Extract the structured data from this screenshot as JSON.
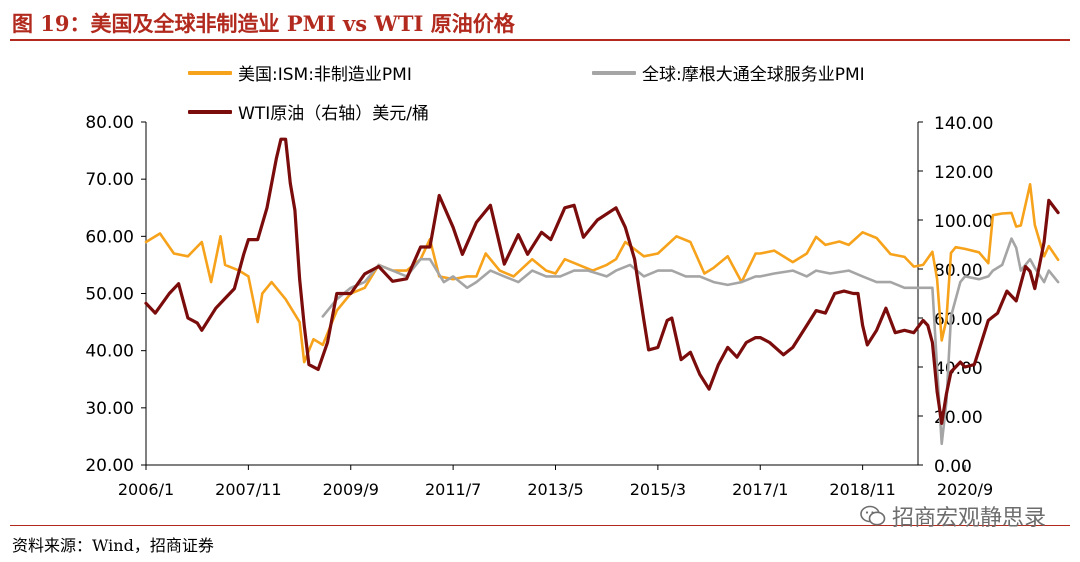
{
  "figure": {
    "title": "图 19：美国及全球非制造业 PMI vs WTI 原油价格",
    "source": "资料来源：Wind，招商证券",
    "watermark": "招商宏观静思录"
  },
  "legend": {
    "items": [
      {
        "label": "美国:ISM:非制造业PMI",
        "color": "#f7a21b"
      },
      {
        "label": "全球:摩根大通全球服务业PMI",
        "color": "#a5a5a5"
      },
      {
        "label": "WTI原油（右轴）美元/桶",
        "color": "#7b0c0c"
      }
    ]
  },
  "colors": {
    "accent": "#b22a1e",
    "us_pmi": "#f7a21b",
    "global_pmi": "#a5a5a5",
    "wti": "#7b0c0c"
  },
  "chart_data": {
    "type": "line",
    "x_labels": [
      "2006/1",
      "2007/11",
      "2009/9",
      "2011/7",
      "2013/5",
      "2015/3",
      "2017/1",
      "2018/11",
      "2020/9"
    ],
    "x_label_dates": [
      "2006-01",
      "2007-11",
      "2009-09",
      "2011-07",
      "2013-05",
      "2015-03",
      "2017-01",
      "2018-11",
      "2020-09"
    ],
    "y_left": {
      "min": 20,
      "max": 80,
      "ticks": [
        "20.00",
        "30.00",
        "40.00",
        "50.00",
        "60.00",
        "70.00",
        "80.00"
      ]
    },
    "y_right": {
      "min": 0,
      "max": 140,
      "ticks": [
        "0.00",
        "20.00",
        "40.00",
        "60.00",
        "80.00",
        "100.00",
        "120.00",
        "140.00"
      ]
    },
    "series": [
      {
        "name": "美国:ISM:非制造业PMI",
        "axis": "left",
        "color": "#f7a21b",
        "points": [
          [
            "2006-01",
            59
          ],
          [
            "2006-04",
            60.5
          ],
          [
            "2006-07",
            57
          ],
          [
            "2006-10",
            56.5
          ],
          [
            "2007-01",
            59
          ],
          [
            "2007-03",
            52
          ],
          [
            "2007-05",
            60
          ],
          [
            "2007-06",
            55
          ],
          [
            "2007-09",
            54
          ],
          [
            "2007-11",
            53
          ],
          [
            "2008-01",
            45
          ],
          [
            "2008-02",
            50
          ],
          [
            "2008-04",
            52
          ],
          [
            "2008-07",
            49
          ],
          [
            "2008-10",
            45
          ],
          [
            "2008-11",
            38
          ],
          [
            "2009-01",
            42
          ],
          [
            "2009-03",
            41
          ],
          [
            "2009-06",
            47
          ],
          [
            "2009-09",
            50
          ],
          [
            "2009-12",
            51
          ],
          [
            "2010-03",
            55
          ],
          [
            "2010-06",
            54
          ],
          [
            "2010-09",
            54
          ],
          [
            "2010-12",
            56
          ],
          [
            "2011-02",
            59.5
          ],
          [
            "2011-04",
            53
          ],
          [
            "2011-07",
            52.5
          ],
          [
            "2011-10",
            53
          ],
          [
            "2011-12",
            53
          ],
          [
            "2012-02",
            57
          ],
          [
            "2012-05",
            54
          ],
          [
            "2012-08",
            53
          ],
          [
            "2012-12",
            56
          ],
          [
            "2013-03",
            54
          ],
          [
            "2013-05",
            53.5
          ],
          [
            "2013-07",
            56
          ],
          [
            "2013-10",
            55
          ],
          [
            "2014-01",
            54
          ],
          [
            "2014-04",
            55
          ],
          [
            "2014-06",
            56
          ],
          [
            "2014-08",
            59
          ],
          [
            "2014-12",
            56.5
          ],
          [
            "2015-03",
            57
          ],
          [
            "2015-07",
            60
          ],
          [
            "2015-10",
            59
          ],
          [
            "2016-01",
            53.5
          ],
          [
            "2016-03",
            54.5
          ],
          [
            "2016-06",
            56.5
          ],
          [
            "2016-09",
            52
          ],
          [
            "2016-12",
            57
          ],
          [
            "2017-01",
            57
          ],
          [
            "2017-04",
            57.5
          ],
          [
            "2017-08",
            55.5
          ],
          [
            "2017-11",
            57
          ],
          [
            "2018-01",
            59.9
          ],
          [
            "2018-03",
            58.5
          ],
          [
            "2018-06",
            59.1
          ],
          [
            "2018-08",
            58.5
          ],
          [
            "2018-11",
            60.7
          ],
          [
            "2019-02",
            59.7
          ],
          [
            "2019-05",
            56.9
          ],
          [
            "2019-08",
            56.4
          ],
          [
            "2019-10",
            54.7
          ],
          [
            "2019-12",
            55.0
          ],
          [
            "2020-02",
            57.3
          ],
          [
            "2020-03",
            52.5
          ],
          [
            "2020-04",
            41.8
          ],
          [
            "2020-05",
            45.4
          ],
          [
            "2020-06",
            57.1
          ],
          [
            "2020-07",
            58.1
          ],
          [
            "2020-09",
            57.8
          ],
          [
            "2020-12",
            57.2
          ],
          [
            "2021-02",
            55.3
          ],
          [
            "2021-03",
            63.7
          ],
          [
            "2021-05",
            64.0
          ],
          [
            "2021-07",
            64.1
          ],
          [
            "2021-08",
            61.7
          ],
          [
            "2021-09",
            61.9
          ],
          [
            "2021-11",
            69.1
          ],
          [
            "2021-12",
            62.0
          ],
          [
            "2022-02",
            56.5
          ],
          [
            "2022-03",
            58.3
          ],
          [
            "2022-05",
            55.9
          ]
        ]
      },
      {
        "name": "全球:摩根大通全球服务业PMI",
        "axis": "left",
        "color": "#a5a5a5",
        "points": [
          [
            "2009-03",
            46
          ],
          [
            "2009-06",
            49
          ],
          [
            "2009-09",
            51
          ],
          [
            "2009-12",
            52
          ],
          [
            "2010-03",
            55
          ],
          [
            "2010-06",
            54
          ],
          [
            "2010-09",
            53
          ],
          [
            "2010-12",
            56
          ],
          [
            "2011-02",
            56
          ],
          [
            "2011-05",
            52
          ],
          [
            "2011-07",
            53
          ],
          [
            "2011-10",
            51
          ],
          [
            "2011-12",
            52
          ],
          [
            "2012-03",
            54
          ],
          [
            "2012-06",
            53
          ],
          [
            "2012-09",
            52
          ],
          [
            "2012-12",
            54
          ],
          [
            "2013-03",
            53
          ],
          [
            "2013-06",
            53
          ],
          [
            "2013-09",
            54
          ],
          [
            "2013-12",
            54
          ],
          [
            "2014-04",
            53
          ],
          [
            "2014-06",
            54
          ],
          [
            "2014-09",
            55
          ],
          [
            "2014-12",
            53
          ],
          [
            "2015-03",
            54
          ],
          [
            "2015-06",
            54
          ],
          [
            "2015-09",
            53
          ],
          [
            "2015-12",
            53
          ],
          [
            "2016-03",
            52
          ],
          [
            "2016-06",
            51.5
          ],
          [
            "2016-09",
            52
          ],
          [
            "2016-12",
            53
          ],
          [
            "2017-01",
            53
          ],
          [
            "2017-04",
            53.5
          ],
          [
            "2017-08",
            54
          ],
          [
            "2017-11",
            53
          ],
          [
            "2018-01",
            54
          ],
          [
            "2018-04",
            53.5
          ],
          [
            "2018-08",
            54
          ],
          [
            "2018-11",
            53
          ],
          [
            "2019-02",
            52
          ],
          [
            "2019-05",
            52
          ],
          [
            "2019-08",
            51
          ],
          [
            "2019-10",
            51
          ],
          [
            "2019-12",
            51
          ],
          [
            "2020-02",
            51
          ],
          [
            "2020-03",
            37
          ],
          [
            "2020-04",
            23.7
          ],
          [
            "2020-05",
            31
          ],
          [
            "2020-06",
            46
          ],
          [
            "2020-08",
            52
          ],
          [
            "2020-09",
            53
          ],
          [
            "2020-12",
            52.5
          ],
          [
            "2021-02",
            53
          ],
          [
            "2021-03",
            54
          ],
          [
            "2021-05",
            55
          ],
          [
            "2021-07",
            59.6
          ],
          [
            "2021-08",
            58
          ],
          [
            "2021-09",
            54
          ],
          [
            "2021-11",
            56
          ],
          [
            "2021-12",
            54.5
          ],
          [
            "2022-02",
            52
          ],
          [
            "2022-03",
            54
          ],
          [
            "2022-05",
            52
          ]
        ]
      },
      {
        "name": "WTI原油（右轴）美元/桶",
        "axis": "right",
        "color": "#7b0c0c",
        "points": [
          [
            "2006-01",
            66
          ],
          [
            "2006-03",
            62
          ],
          [
            "2006-06",
            70
          ],
          [
            "2006-08",
            74
          ],
          [
            "2006-10",
            60
          ],
          [
            "2006-12",
            58
          ],
          [
            "2007-01",
            55
          ],
          [
            "2007-04",
            64
          ],
          [
            "2007-06",
            68
          ],
          [
            "2007-08",
            72
          ],
          [
            "2007-10",
            86
          ],
          [
            "2007-11",
            92
          ],
          [
            "2008-01",
            92
          ],
          [
            "2008-03",
            105
          ],
          [
            "2008-05",
            125
          ],
          [
            "2008-06",
            133
          ],
          [
            "2008-07",
            133
          ],
          [
            "2008-08",
            115
          ],
          [
            "2008-09",
            104
          ],
          [
            "2008-10",
            76
          ],
          [
            "2008-11",
            57
          ],
          [
            "2008-12",
            41
          ],
          [
            "2009-02",
            39
          ],
          [
            "2009-04",
            50
          ],
          [
            "2009-06",
            70
          ],
          [
            "2009-09",
            70
          ],
          [
            "2009-12",
            78
          ],
          [
            "2010-03",
            81
          ],
          [
            "2010-06",
            75
          ],
          [
            "2010-09",
            76
          ],
          [
            "2010-12",
            89
          ],
          [
            "2011-02",
            89
          ],
          [
            "2011-04",
            110
          ],
          [
            "2011-07",
            97
          ],
          [
            "2011-09",
            86
          ],
          [
            "2011-12",
            99
          ],
          [
            "2012-03",
            106
          ],
          [
            "2012-06",
            82
          ],
          [
            "2012-09",
            94
          ],
          [
            "2012-11",
            86
          ],
          [
            "2013-02",
            95
          ],
          [
            "2013-04",
            92
          ],
          [
            "2013-07",
            105
          ],
          [
            "2013-09",
            106
          ],
          [
            "2013-11",
            93
          ],
          [
            "2014-02",
            100
          ],
          [
            "2014-06",
            105
          ],
          [
            "2014-08",
            97
          ],
          [
            "2014-10",
            84
          ],
          [
            "2014-12",
            59
          ],
          [
            "2015-01",
            47
          ],
          [
            "2015-03",
            48
          ],
          [
            "2015-05",
            59
          ],
          [
            "2015-06",
            60
          ],
          [
            "2015-08",
            43
          ],
          [
            "2015-10",
            46
          ],
          [
            "2015-12",
            37
          ],
          [
            "2016-02",
            31
          ],
          [
            "2016-04",
            41
          ],
          [
            "2016-06",
            48
          ],
          [
            "2016-08",
            44
          ],
          [
            "2016-10",
            50
          ],
          [
            "2016-12",
            52
          ],
          [
            "2017-01",
            52
          ],
          [
            "2017-03",
            50
          ],
          [
            "2017-06",
            45
          ],
          [
            "2017-08",
            48
          ],
          [
            "2017-11",
            57
          ],
          [
            "2018-01",
            63
          ],
          [
            "2018-03",
            62
          ],
          [
            "2018-05",
            70
          ],
          [
            "2018-07",
            71
          ],
          [
            "2018-09",
            70
          ],
          [
            "2018-10",
            70
          ],
          [
            "2018-11",
            57
          ],
          [
            "2018-12",
            49
          ],
          [
            "2019-02",
            55
          ],
          [
            "2019-04",
            64
          ],
          [
            "2019-06",
            54
          ],
          [
            "2019-08",
            55
          ],
          [
            "2019-10",
            54
          ],
          [
            "2019-12",
            59
          ],
          [
            "2020-01",
            57
          ],
          [
            "2020-02",
            50
          ],
          [
            "2020-03",
            30
          ],
          [
            "2020-04",
            17
          ],
          [
            "2020-05",
            29
          ],
          [
            "2020-06",
            38
          ],
          [
            "2020-08",
            42
          ],
          [
            "2020-09",
            40
          ],
          [
            "2020-11",
            41
          ],
          [
            "2020-12",
            47
          ],
          [
            "2021-02",
            59
          ],
          [
            "2021-04",
            62
          ],
          [
            "2021-06",
            71
          ],
          [
            "2021-08",
            67
          ],
          [
            "2021-10",
            81
          ],
          [
            "2021-11",
            79
          ],
          [
            "2021-12",
            72
          ],
          [
            "2022-02",
            91
          ],
          [
            "2022-03",
            108
          ],
          [
            "2022-05",
            103
          ]
        ]
      }
    ]
  }
}
